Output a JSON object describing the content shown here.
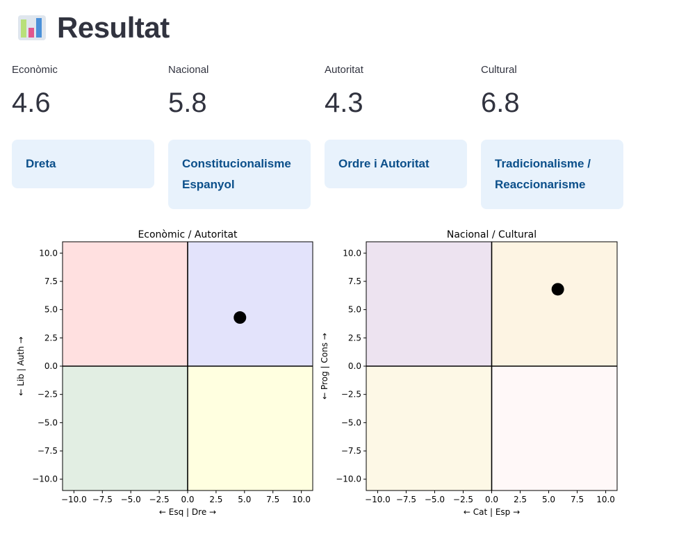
{
  "header": {
    "title": "Resultat",
    "icon": "bar-chart-emoji-icon"
  },
  "metrics": [
    {
      "label": "Econòmic",
      "value": "4.6"
    },
    {
      "label": "Nacional",
      "value": "5.8"
    },
    {
      "label": "Autoritat",
      "value": "4.3"
    },
    {
      "label": "Cultural",
      "value": "6.8"
    }
  ],
  "boxes": [
    {
      "text": "Dreta"
    },
    {
      "text": "Constitucionalisme Espanyol"
    },
    {
      "text": "Ordre i Autoritat"
    },
    {
      "text": "Tradicionalisme / Reaccionarisme"
    }
  ],
  "colors": {
    "info_bg": "#e8f2fc",
    "info_text": "#0b4f8a"
  },
  "chart_data": [
    {
      "type": "scatter",
      "title": "Econòmic / Autoritat",
      "xlabel": "← Esq | Dre →",
      "ylabel": "← Lib | Auth →",
      "xlim": [
        -11,
        11
      ],
      "ylim": [
        -11,
        11
      ],
      "xticks": [
        "−10.0",
        "−7.5",
        "−5.0",
        "−2.5",
        "0.0",
        "2.5",
        "5.0",
        "7.5",
        "10.0"
      ],
      "yticks": [
        "−10.0",
        "−7.5",
        "−5.0",
        "−2.5",
        "0.0",
        "2.5",
        "5.0",
        "7.5",
        "10.0"
      ],
      "quadrant_colors": {
        "top_left": "#ffe0e0",
        "top_right": "#e3e3fb",
        "bottom_left": "#e2eee3",
        "bottom_right": "#ffffe0"
      },
      "points": [
        {
          "x": 4.6,
          "y": 4.3
        }
      ]
    },
    {
      "type": "scatter",
      "title": "Nacional / Cultural",
      "xlabel": "← Cat | Esp →",
      "ylabel": "← Prog | Cons →",
      "xlim": [
        -11,
        11
      ],
      "ylim": [
        -11,
        11
      ],
      "xticks": [
        "−10.0",
        "−7.5",
        "−5.0",
        "−2.5",
        "0.0",
        "2.5",
        "5.0",
        "7.5",
        "10.0"
      ],
      "yticks": [
        "−10.0",
        "−7.5",
        "−5.0",
        "−2.5",
        "0.0",
        "2.5",
        "5.0",
        "7.5",
        "10.0"
      ],
      "quadrant_colors": {
        "top_left": "#ede3f0",
        "top_right": "#fdf4e3",
        "bottom_left": "#fdf8e6",
        "bottom_right": "#fff8f8"
      },
      "points": [
        {
          "x": 5.8,
          "y": 6.8
        }
      ]
    }
  ]
}
